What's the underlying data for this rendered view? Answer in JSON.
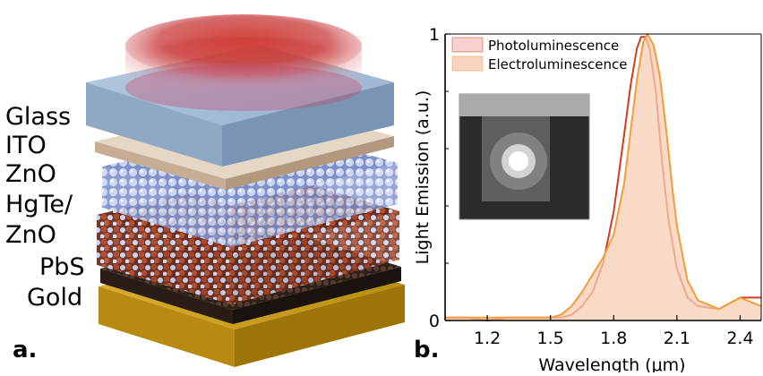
{
  "panel_a": {
    "letter": "a.",
    "layers": [
      {
        "label": "Glass",
        "color": "#a7bcd6"
      },
      {
        "label": "ITO",
        "color": "#efe6dc"
      },
      {
        "label": "ZnO",
        "color": "#5656a8"
      },
      {
        "label": "HgTe/",
        "color": "#c98676"
      },
      {
        "label": "ZnO",
        "color": "#c98676"
      },
      {
        "label": "PbS",
        "color": "#1e1e1e"
      },
      {
        "label": "Gold",
        "color": "#cfa21e"
      }
    ]
  },
  "panel_b": {
    "letter": "b.",
    "chart_data": {
      "type": "line",
      "xlabel": "Wavelength (μm)",
      "ylabel": "Light Emission (a.u.)",
      "xlim": [
        1.0,
        2.5
      ],
      "ylim": [
        0,
        1
      ],
      "x_ticks": [
        "1.2",
        "1.5",
        "1.8",
        "2.1",
        "2.4"
      ],
      "x_tick_values": [
        1.2,
        1.5,
        1.8,
        2.1,
        2.4
      ],
      "y_ticks": [
        "0",
        "1"
      ],
      "y_tick_values": [
        0,
        1
      ],
      "legend_position": "top-left",
      "series": [
        {
          "name": "Photoluminescence",
          "color": "#d63a1e",
          "fill": "none",
          "x": [
            1.0,
            1.1,
            1.2,
            1.3,
            1.4,
            1.5,
            1.55,
            1.6,
            1.65,
            1.7,
            1.75,
            1.8,
            1.85,
            1.88,
            1.91,
            1.93,
            1.95,
            1.97,
            2.0,
            2.03,
            2.06,
            2.1,
            2.15,
            2.2,
            2.3,
            2.4,
            2.5
          ],
          "y": [
            0.01,
            0.01,
            0.0,
            0.01,
            0.01,
            0.01,
            0.01,
            0.02,
            0.05,
            0.1,
            0.2,
            0.38,
            0.65,
            0.82,
            0.95,
            0.99,
            0.99,
            0.95,
            0.8,
            0.55,
            0.35,
            0.18,
            0.08,
            0.05,
            0.04,
            0.08,
            0.08
          ]
        },
        {
          "name": "Electroluminescence",
          "color": "#ef9e3a",
          "fill": "#f7cdb3",
          "x": [
            1.0,
            1.1,
            1.2,
            1.3,
            1.4,
            1.5,
            1.55,
            1.6,
            1.65,
            1.7,
            1.75,
            1.8,
            1.85,
            1.88,
            1.91,
            1.94,
            1.96,
            1.99,
            2.02,
            2.05,
            2.08,
            2.1,
            2.15,
            2.2,
            2.3,
            2.4,
            2.5
          ],
          "y": [
            0.01,
            0.01,
            0.01,
            0.01,
            0.01,
            0.01,
            0.02,
            0.05,
            0.1,
            0.16,
            0.22,
            0.3,
            0.48,
            0.66,
            0.84,
            0.97,
            1.0,
            0.96,
            0.85,
            0.66,
            0.45,
            0.33,
            0.14,
            0.07,
            0.04,
            0.08,
            0.05
          ]
        }
      ]
    }
  }
}
